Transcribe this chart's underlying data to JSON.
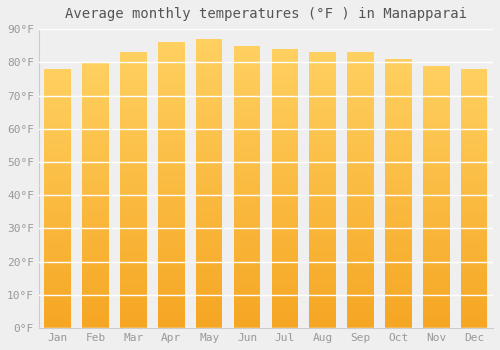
{
  "title": "Average monthly temperatures (°F ) in Manapparai",
  "months": [
    "Jan",
    "Feb",
    "Mar",
    "Apr",
    "May",
    "Jun",
    "Jul",
    "Aug",
    "Sep",
    "Oct",
    "Nov",
    "Dec"
  ],
  "values": [
    78,
    80,
    83,
    86,
    87,
    85,
    84,
    83,
    83,
    81,
    79,
    78
  ],
  "bar_color": "#FFA500",
  "bar_color_light": "#FFD04B",
  "ylim": [
    0,
    90
  ],
  "yticks": [
    0,
    10,
    20,
    30,
    40,
    50,
    60,
    70,
    80,
    90
  ],
  "ytick_labels": [
    "0°F",
    "10°F",
    "20°F",
    "30°F",
    "40°F",
    "50°F",
    "60°F",
    "70°F",
    "80°F",
    "90°F"
  ],
  "background_color": "#efefef",
  "grid_color": "#ffffff",
  "title_fontsize": 10,
  "tick_fontsize": 8,
  "font_family": "monospace",
  "tick_color": "#999999",
  "title_color": "#555555"
}
